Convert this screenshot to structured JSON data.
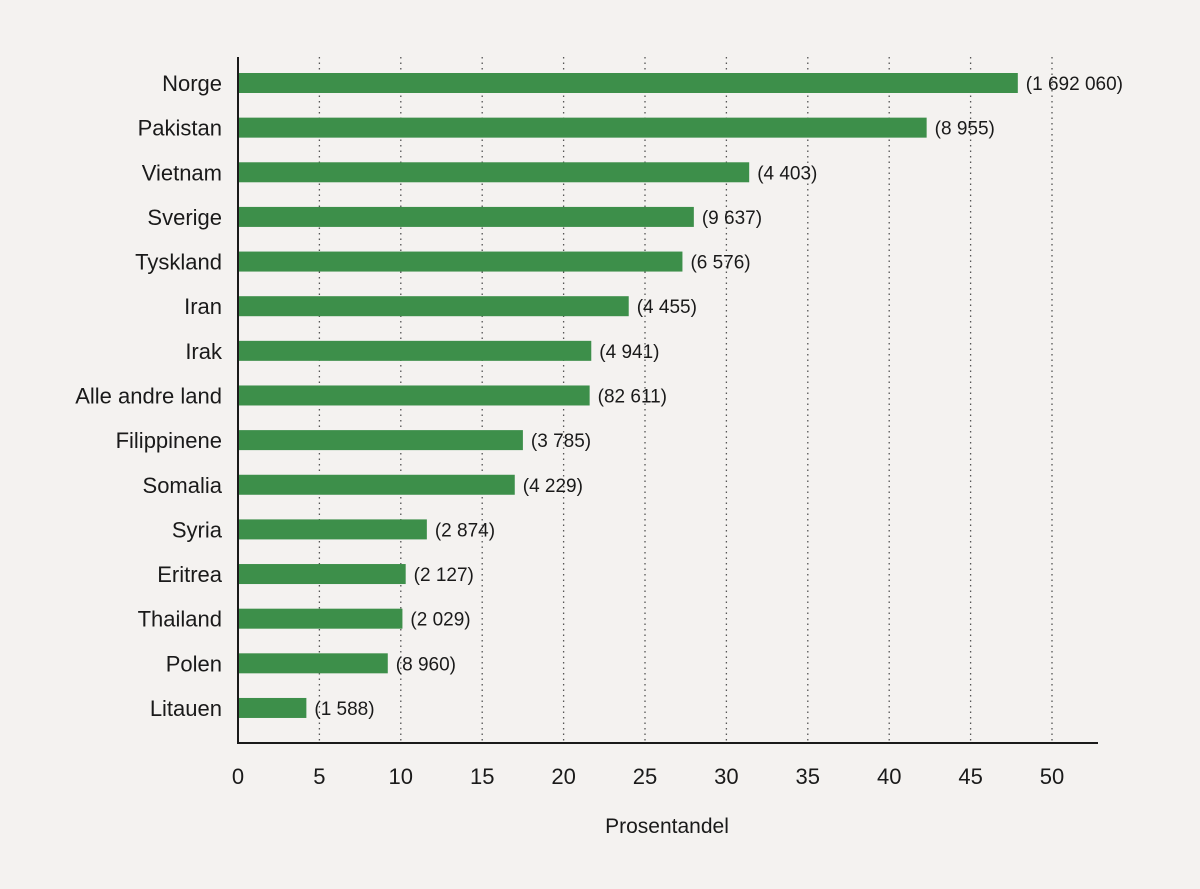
{
  "chart_data": {
    "type": "bar",
    "orientation": "horizontal",
    "title": "",
    "xlabel": "Prosentandel",
    "ylabel": "",
    "xlim": [
      0,
      53
    ],
    "xticks": [
      0,
      5,
      10,
      15,
      20,
      25,
      30,
      35,
      40,
      45,
      50
    ],
    "grid": "vertical-dotted",
    "bar_color": "#3d8f4a",
    "categories": [
      "Norge",
      "Pakistan",
      "Vietnam",
      "Sverige",
      "Tyskland",
      "Iran",
      "Irak",
      "Alle andre land",
      "Filippinene",
      "Somalia",
      "Syria",
      "Eritrea",
      "Thailand",
      "Polen",
      "Litauen"
    ],
    "values": [
      47.9,
      42.3,
      31.4,
      28.0,
      27.3,
      24.0,
      21.7,
      21.6,
      17.5,
      17.0,
      11.6,
      10.3,
      10.1,
      9.2,
      4.2
    ],
    "data_labels": [
      "(1 692 060)",
      "(8 955)",
      "(4 403)",
      "(9 637)",
      "(6 576)",
      "(4 455)",
      "(4 941)",
      "(82 611)",
      "(3 785)",
      "(4 229)",
      "(2 874)",
      "(2 127)",
      "(2 029)",
      "(8 960)",
      "(1 588)"
    ]
  }
}
